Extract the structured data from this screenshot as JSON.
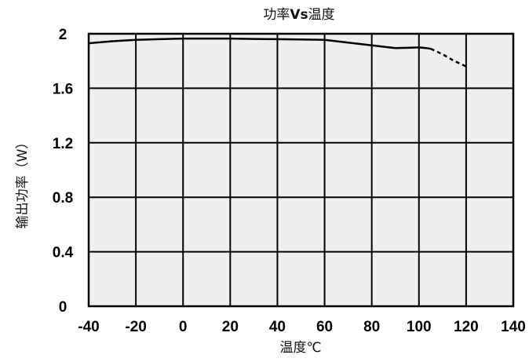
{
  "chart_data": {
    "type": "line",
    "title_parts": [
      "功率",
      "Vs",
      "温度"
    ],
    "xlabel": "温度℃",
    "ylabel": "输出功率（W）",
    "xlim": [
      -40,
      140
    ],
    "ylim": [
      0,
      2
    ],
    "x_ticks": [
      -40,
      -20,
      0,
      20,
      40,
      60,
      80,
      100,
      120,
      140
    ],
    "y_ticks": [
      0,
      0.4,
      0.8,
      1.2,
      1.6,
      2
    ],
    "x_tick_labels": [
      "-40",
      "-20",
      "0",
      "20",
      "40",
      "60",
      "80",
      "100",
      "120",
      "140"
    ],
    "y_tick_labels": [
      "0",
      "0.4",
      "0.8",
      "1.2",
      "1.6",
      "2"
    ],
    "grid": true,
    "plot_background": "#efefef",
    "line_color": "#000000",
    "series": [
      {
        "style": "solid",
        "x": [
          -40,
          -30,
          -20,
          -10,
          0,
          10,
          20,
          30,
          40,
          50,
          60,
          70,
          80,
          85,
          90,
          95,
          100,
          103,
          105
        ],
        "y": [
          1.93,
          1.945,
          1.955,
          1.96,
          1.965,
          1.965,
          1.965,
          1.962,
          1.96,
          1.958,
          1.955,
          1.935,
          1.915,
          1.905,
          1.895,
          1.897,
          1.9,
          1.895,
          1.89
        ]
      },
      {
        "style": "dashed",
        "x": [
          105,
          110,
          115,
          120
        ],
        "y": [
          1.89,
          1.85,
          1.8,
          1.76
        ]
      }
    ]
  }
}
